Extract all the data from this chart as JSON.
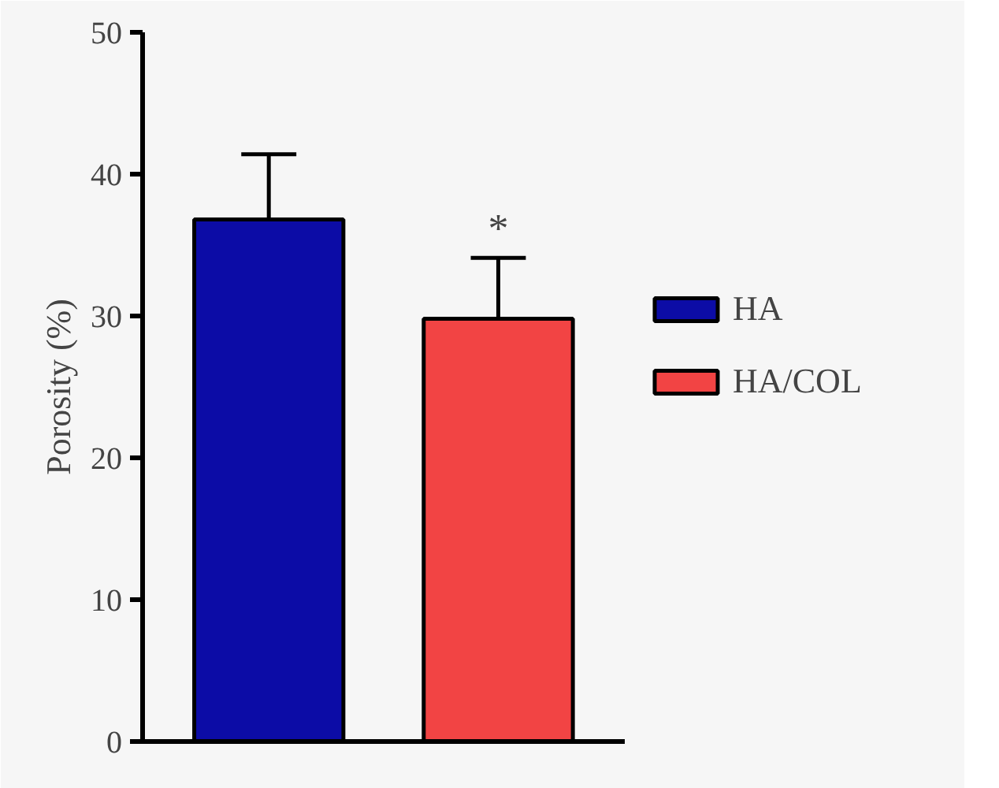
{
  "chart_data": {
    "type": "bar",
    "ylabel": "Porosity (%)",
    "categories": [
      null,
      null
    ],
    "series": [
      {
        "name": "HA",
        "color": "#0c0ca6",
        "values": [
          36.8,
          null
        ],
        "errors": [
          4.6,
          null
        ]
      },
      {
        "name": "HA/COL",
        "color": "#f24444",
        "values": [
          null,
          29.8
        ],
        "errors": [
          null,
          4.3
        ]
      }
    ],
    "ylim": [
      0,
      50
    ],
    "yticks": [
      0,
      10,
      20,
      30,
      40,
      50
    ],
    "grid": false,
    "legend": "right",
    "annotations": [
      "*"
    ]
  }
}
